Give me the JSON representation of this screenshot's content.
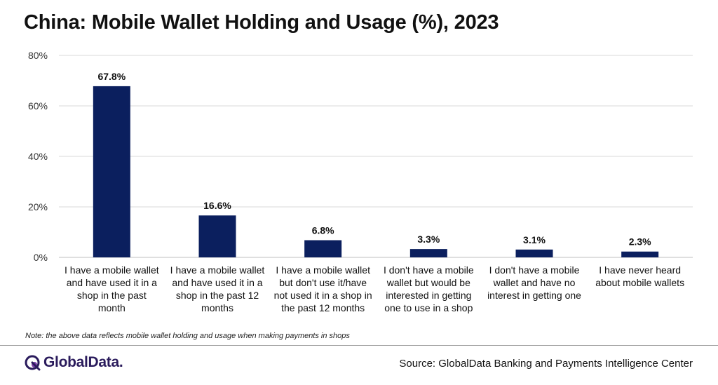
{
  "chart_data": {
    "type": "bar",
    "title": "China: Mobile Wallet Holding and Usage (%), 2023",
    "categories": [
      "I have a mobile wallet and have used it in a shop in the past month",
      "I have a mobile wallet and have used it in a shop in the past 12 months",
      "I have a mobile wallet but don't use it/have not used it in a shop in the past 12 months",
      "I don't have a mobile wallet but would be interested in getting one to use in a shop",
      "I don't have a mobile wallet and have no interest in getting one",
      "I have never heard about mobile wallets"
    ],
    "category_lines": [
      [
        "I have a mobile wallet",
        "and have used it in a",
        "shop in the past",
        "month"
      ],
      [
        "I have a mobile wallet",
        "and have used it in a",
        "shop in the past 12",
        "months"
      ],
      [
        "I have a mobile wallet",
        "but don't use it/have",
        "not used it in a shop in",
        "the past 12 months"
      ],
      [
        "I don't have a mobile",
        "wallet but would be",
        "interested in getting",
        "one to use in a shop"
      ],
      [
        "I don't have a mobile",
        "wallet and have no",
        "interest in getting one"
      ],
      [
        "I have never heard",
        "about mobile wallets"
      ]
    ],
    "values": [
      67.8,
      16.6,
      6.8,
      3.3,
      3.1,
      2.3
    ],
    "data_labels": [
      "67.8%",
      "16.6%",
      "6.8%",
      "3.3%",
      "3.1%",
      "2.3%"
    ],
    "ylim": [
      0,
      80
    ],
    "yticks": [
      0,
      20,
      40,
      60,
      80
    ],
    "ytick_labels": [
      "0%",
      "20%",
      "40%",
      "60%",
      "80%"
    ],
    "grid": true,
    "bar_color": "#0b1f5e",
    "xlabel": "",
    "ylabel": ""
  },
  "footer": {
    "note": "Note: the above data reflects mobile wallet holding and usage when making payments in shops",
    "logo_text": "GlobalData.",
    "source": "Source: GlobalData Banking and Payments Intelligence Center"
  },
  "colors": {
    "bar": "#0b1f5e",
    "logo": "#2a1b5c",
    "grid": "#d9d9d9"
  }
}
